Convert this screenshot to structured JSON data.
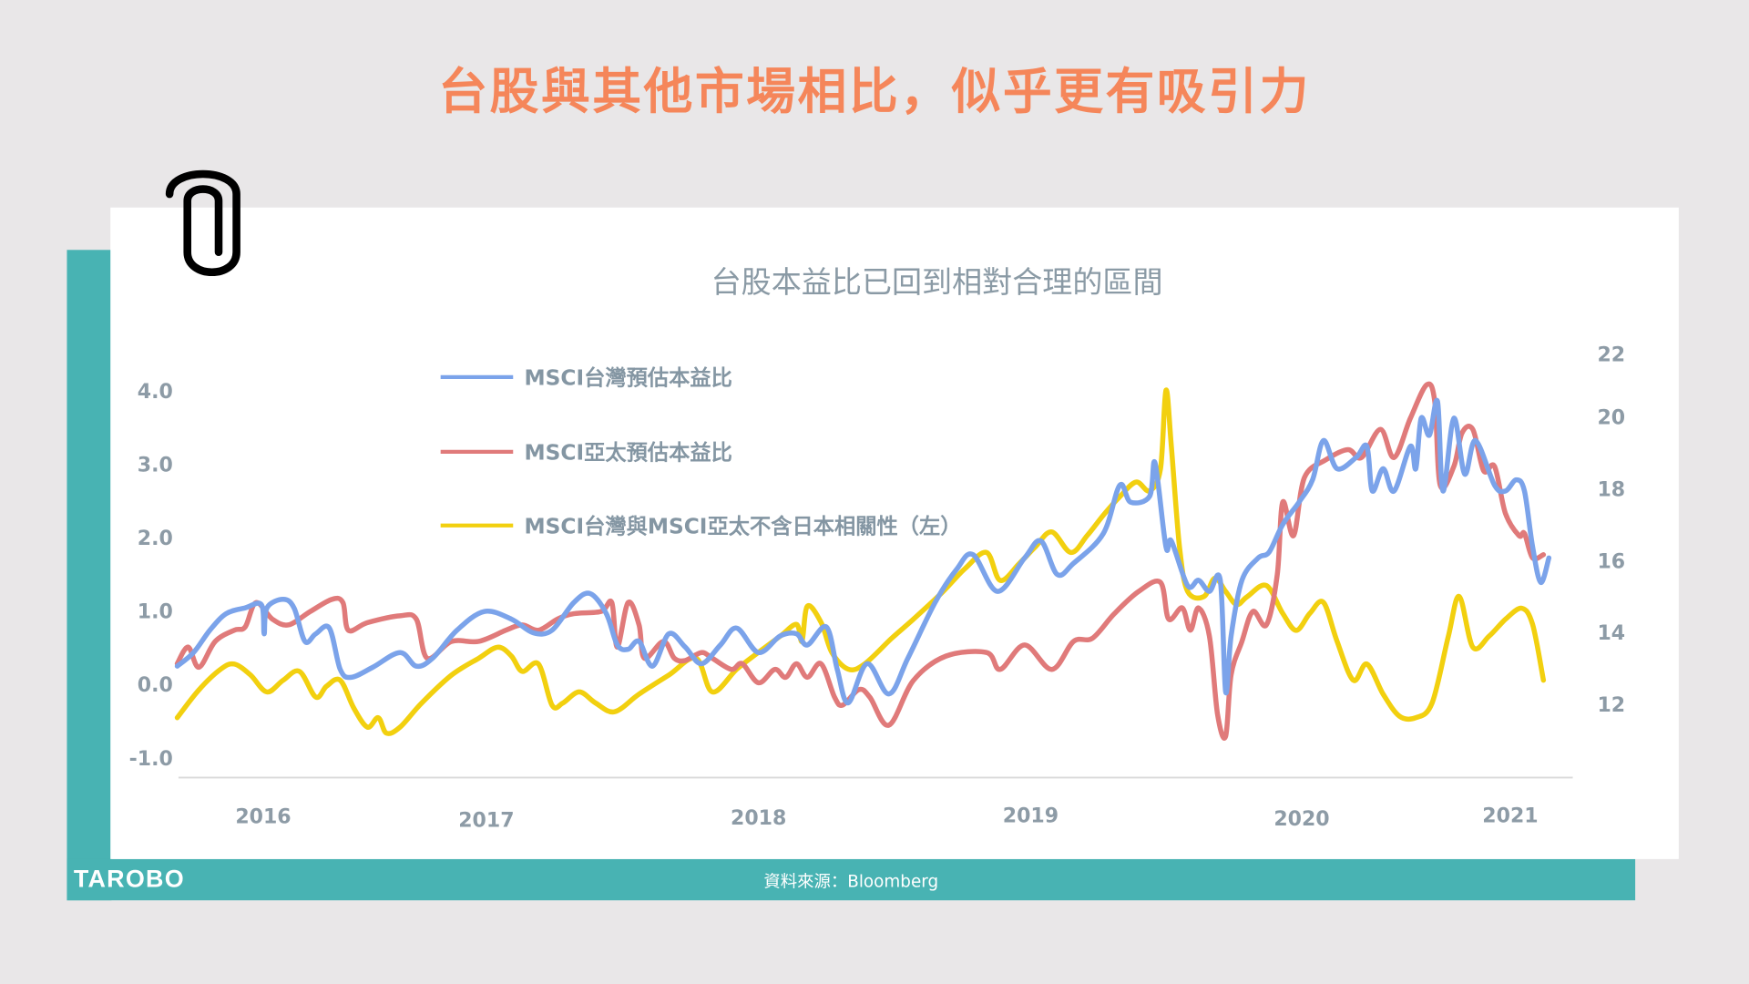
{
  "header": {
    "title": "台股與其他市場相比，似乎更有吸引力"
  },
  "footer": {
    "logo": "TAROBO",
    "source": "資料來源：Bloomberg"
  },
  "colors": {
    "accent": "#f5865a",
    "teal": "#48b3b3",
    "taiwan_pe": "#7ba3ea",
    "asia_pe": "#e07a7a",
    "correlation": "#f2d00f"
  },
  "icons": {
    "paperclip": "paperclip-icon"
  },
  "chart_data": {
    "type": "line",
    "title": "台股本益比已回到相對合理的區間",
    "x_ticks": [
      "2016",
      "2017",
      "2018",
      "2019",
      "2020",
      "2021"
    ],
    "y_left": {
      "ticks": [
        "4.0",
        "3.0",
        "2.0",
        "1.0",
        "0.0",
        "-1.0"
      ],
      "range": [
        -1.0,
        4.0
      ]
    },
    "y_right": {
      "ticks": [
        "22",
        "20",
        "18",
        "16",
        "14",
        "12"
      ],
      "range": [
        12,
        22
      ]
    },
    "grid": false,
    "legend_placement": "top-left",
    "series": [
      {
        "name": "MSCI台灣預估本益比",
        "axis": "right",
        "color": "#7ba3ea",
        "points": [
          [
            2015.86,
            13.05
          ],
          [
            2015.92,
            13.43
          ],
          [
            2015.98,
            14.05
          ],
          [
            2016.04,
            14.51
          ],
          [
            2016.11,
            14.67
          ],
          [
            2016.17,
            14.76
          ],
          [
            2016.18,
            13.95
          ],
          [
            2016.19,
            14.67
          ],
          [
            2016.25,
            14.91
          ],
          [
            2016.29,
            14.67
          ],
          [
            2016.33,
            13.74
          ],
          [
            2016.37,
            13.95
          ],
          [
            2016.42,
            14.11
          ],
          [
            2016.46,
            12.96
          ],
          [
            2016.5,
            12.74
          ],
          [
            2016.58,
            13.02
          ],
          [
            2016.68,
            13.43
          ],
          [
            2016.74,
            13.05
          ],
          [
            2016.8,
            13.27
          ],
          [
            2016.89,
            14.05
          ],
          [
            2016.99,
            14.57
          ],
          [
            2017.09,
            14.36
          ],
          [
            2017.17,
            13.98
          ],
          [
            2017.24,
            14.05
          ],
          [
            2017.32,
            14.82
          ],
          [
            2017.38,
            15.07
          ],
          [
            2017.44,
            14.51
          ],
          [
            2017.48,
            13.64
          ],
          [
            2017.52,
            13.52
          ],
          [
            2017.56,
            13.74
          ],
          [
            2017.61,
            13.05
          ],
          [
            2017.67,
            13.95
          ],
          [
            2017.73,
            13.58
          ],
          [
            2017.79,
            13.12
          ],
          [
            2017.86,
            13.64
          ],
          [
            2017.92,
            14.11
          ],
          [
            2018.0,
            13.43
          ],
          [
            2018.08,
            13.89
          ],
          [
            2018.14,
            13.95
          ],
          [
            2018.18,
            13.64
          ],
          [
            2018.25,
            14.14
          ],
          [
            2018.29,
            12.96
          ],
          [
            2018.33,
            12.03
          ],
          [
            2018.4,
            13.12
          ],
          [
            2018.48,
            12.28
          ],
          [
            2018.55,
            13.27
          ],
          [
            2018.65,
            14.82
          ],
          [
            2018.73,
            15.75
          ],
          [
            2018.79,
            16.15
          ],
          [
            2018.88,
            15.13
          ],
          [
            2018.98,
            16.06
          ],
          [
            2019.04,
            16.53
          ],
          [
            2019.1,
            15.6
          ],
          [
            2019.16,
            15.91
          ],
          [
            2019.27,
            16.74
          ],
          [
            2019.33,
            18.08
          ],
          [
            2019.37,
            17.61
          ],
          [
            2019.44,
            17.77
          ],
          [
            2019.46,
            18.7
          ],
          [
            2019.5,
            16.37
          ],
          [
            2019.52,
            16.53
          ],
          [
            2019.58,
            15.29
          ],
          [
            2019.62,
            15.44
          ],
          [
            2019.66,
            15.13
          ],
          [
            2019.7,
            15.44
          ],
          [
            2019.72,
            12.34
          ],
          [
            2019.74,
            13.89
          ],
          [
            2019.78,
            15.44
          ],
          [
            2019.84,
            16.06
          ],
          [
            2019.88,
            16.22
          ],
          [
            2019.93,
            16.99
          ],
          [
            2019.99,
            17.61
          ],
          [
            2020.04,
            18.23
          ],
          [
            2020.08,
            19.32
          ],
          [
            2020.13,
            18.54
          ],
          [
            2020.2,
            18.85
          ],
          [
            2020.24,
            19.16
          ],
          [
            2020.26,
            17.92
          ],
          [
            2020.3,
            18.54
          ],
          [
            2020.34,
            17.92
          ],
          [
            2020.4,
            19.16
          ],
          [
            2020.42,
            18.54
          ],
          [
            2020.44,
            19.94
          ],
          [
            2020.47,
            19.47
          ],
          [
            2020.5,
            20.4
          ],
          [
            2020.52,
            17.92
          ],
          [
            2020.56,
            19.94
          ],
          [
            2020.6,
            18.39
          ],
          [
            2020.64,
            19.32
          ],
          [
            2020.71,
            18.08
          ],
          [
            2020.75,
            17.92
          ],
          [
            2020.79,
            18.23
          ],
          [
            2020.82,
            17.92
          ],
          [
            2020.85,
            16.37
          ],
          [
            2020.88,
            15.38
          ],
          [
            2020.91,
            16.06
          ]
        ]
      },
      {
        "name": "MSCI亞太預估本益比",
        "axis": "right",
        "color": "#e07a7a",
        "points": [
          [
            2015.86,
            13.12
          ],
          [
            2015.9,
            13.58
          ],
          [
            2015.94,
            13.02
          ],
          [
            2016.0,
            13.74
          ],
          [
            2016.07,
            14.05
          ],
          [
            2016.11,
            14.14
          ],
          [
            2016.15,
            14.82
          ],
          [
            2016.21,
            14.36
          ],
          [
            2016.27,
            14.2
          ],
          [
            2016.35,
            14.57
          ],
          [
            2016.43,
            14.91
          ],
          [
            2016.47,
            14.82
          ],
          [
            2016.49,
            14.05
          ],
          [
            2016.56,
            14.26
          ],
          [
            2016.68,
            14.45
          ],
          [
            2016.74,
            14.36
          ],
          [
            2016.78,
            13.27
          ],
          [
            2016.87,
            13.74
          ],
          [
            2016.97,
            13.74
          ],
          [
            2017.07,
            14.05
          ],
          [
            2017.13,
            14.2
          ],
          [
            2017.19,
            14.05
          ],
          [
            2017.26,
            14.36
          ],
          [
            2017.32,
            14.51
          ],
          [
            2017.42,
            14.57
          ],
          [
            2017.46,
            14.82
          ],
          [
            2017.48,
            13.58
          ],
          [
            2017.52,
            14.82
          ],
          [
            2017.56,
            14.2
          ],
          [
            2017.58,
            13.27
          ],
          [
            2017.65,
            13.74
          ],
          [
            2017.69,
            13.27
          ],
          [
            2017.73,
            13.21
          ],
          [
            2017.79,
            13.43
          ],
          [
            2017.83,
            13.27
          ],
          [
            2017.9,
            12.96
          ],
          [
            2017.94,
            13.12
          ],
          [
            2018.0,
            12.59
          ],
          [
            2018.06,
            12.96
          ],
          [
            2018.1,
            12.74
          ],
          [
            2018.14,
            13.12
          ],
          [
            2018.18,
            12.74
          ],
          [
            2018.23,
            13.12
          ],
          [
            2018.28,
            12.19
          ],
          [
            2018.31,
            11.97
          ],
          [
            2018.37,
            12.4
          ],
          [
            2018.41,
            12.19
          ],
          [
            2018.48,
            11.41
          ],
          [
            2018.57,
            12.65
          ],
          [
            2018.69,
            13.33
          ],
          [
            2018.84,
            13.43
          ],
          [
            2018.89,
            12.96
          ],
          [
            2018.98,
            13.64
          ],
          [
            2019.08,
            12.96
          ],
          [
            2019.16,
            13.74
          ],
          [
            2019.23,
            13.83
          ],
          [
            2019.31,
            14.51
          ],
          [
            2019.4,
            15.13
          ],
          [
            2019.48,
            15.38
          ],
          [
            2019.51,
            14.36
          ],
          [
            2019.56,
            14.67
          ],
          [
            2019.59,
            14.05
          ],
          [
            2019.62,
            14.67
          ],
          [
            2019.66,
            13.89
          ],
          [
            2019.69,
            11.72
          ],
          [
            2019.72,
            11.1
          ],
          [
            2019.74,
            12.81
          ],
          [
            2019.78,
            13.74
          ],
          [
            2019.82,
            14.57
          ],
          [
            2019.87,
            14.2
          ],
          [
            2019.91,
            15.6
          ],
          [
            2019.93,
            17.61
          ],
          [
            2019.97,
            16.68
          ],
          [
            2020.01,
            18.29
          ],
          [
            2020.09,
            18.79
          ],
          [
            2020.17,
            19.07
          ],
          [
            2020.22,
            18.85
          ],
          [
            2020.29,
            19.63
          ],
          [
            2020.34,
            18.85
          ],
          [
            2020.4,
            19.94
          ],
          [
            2020.46,
            20.87
          ],
          [
            2020.49,
            20.4
          ],
          [
            2020.51,
            18.08
          ],
          [
            2020.56,
            18.6
          ],
          [
            2020.59,
            19.53
          ],
          [
            2020.63,
            19.63
          ],
          [
            2020.67,
            18.48
          ],
          [
            2020.71,
            18.6
          ],
          [
            2020.75,
            17.3
          ],
          [
            2020.8,
            16.68
          ],
          [
            2020.82,
            16.74
          ],
          [
            2020.85,
            16.06
          ],
          [
            2020.89,
            16.15
          ]
        ]
      },
      {
        "name": "MSCI台灣與MSCI亞太不含日本相關性（左）",
        "axis": "left",
        "color": "#f2d00f",
        "points": [
          [
            2015.86,
            -0.46
          ],
          [
            2015.94,
            -0.08
          ],
          [
            2016.02,
            0.2
          ],
          [
            2016.07,
            0.27
          ],
          [
            2016.13,
            0.12
          ],
          [
            2016.19,
            -0.11
          ],
          [
            2016.25,
            0.05
          ],
          [
            2016.31,
            0.17
          ],
          [
            2016.37,
            -0.18
          ],
          [
            2016.41,
            -0.03
          ],
          [
            2016.46,
            0.05
          ],
          [
            2016.51,
            -0.33
          ],
          [
            2016.56,
            -0.59
          ],
          [
            2016.6,
            -0.46
          ],
          [
            2016.63,
            -0.67
          ],
          [
            2016.68,
            -0.59
          ],
          [
            2016.76,
            -0.26
          ],
          [
            2016.87,
            0.12
          ],
          [
            2016.97,
            0.35
          ],
          [
            2017.04,
            0.5
          ],
          [
            2017.09,
            0.38
          ],
          [
            2017.13,
            0.17
          ],
          [
            2017.19,
            0.27
          ],
          [
            2017.24,
            -0.29
          ],
          [
            2017.28,
            -0.26
          ],
          [
            2017.34,
            -0.11
          ],
          [
            2017.4,
            -0.26
          ],
          [
            2017.47,
            -0.38
          ],
          [
            2017.56,
            -0.14
          ],
          [
            2017.67,
            0.12
          ],
          [
            2017.77,
            0.35
          ],
          [
            2017.83,
            -0.11
          ],
          [
            2017.92,
            0.2
          ],
          [
            2018.0,
            0.43
          ],
          [
            2018.08,
            0.65
          ],
          [
            2018.14,
            0.81
          ],
          [
            2018.16,
            0.58
          ],
          [
            2018.18,
            1.06
          ],
          [
            2018.23,
            0.84
          ],
          [
            2018.27,
            0.43
          ],
          [
            2018.33,
            0.2
          ],
          [
            2018.39,
            0.27
          ],
          [
            2018.49,
            0.62
          ],
          [
            2018.57,
            0.88
          ],
          [
            2018.68,
            1.26
          ],
          [
            2018.76,
            1.57
          ],
          [
            2018.84,
            1.79
          ],
          [
            2018.89,
            1.41
          ],
          [
            2018.96,
            1.64
          ],
          [
            2019.02,
            1.87
          ],
          [
            2019.08,
            2.07
          ],
          [
            2019.15,
            1.79
          ],
          [
            2019.21,
            2.02
          ],
          [
            2019.27,
            2.3
          ],
          [
            2019.33,
            2.55
          ],
          [
            2019.39,
            2.75
          ],
          [
            2019.44,
            2.63
          ],
          [
            2019.48,
            2.93
          ],
          [
            2019.5,
            4.0
          ],
          [
            2019.52,
            3.24
          ],
          [
            2019.55,
            1.87
          ],
          [
            2019.58,
            1.26
          ],
          [
            2019.64,
            1.19
          ],
          [
            2019.68,
            1.44
          ],
          [
            2019.72,
            1.26
          ],
          [
            2019.76,
            1.08
          ],
          [
            2019.8,
            1.19
          ],
          [
            2019.87,
            1.34
          ],
          [
            2019.93,
            0.96
          ],
          [
            2019.98,
            0.73
          ],
          [
            2020.03,
            0.96
          ],
          [
            2020.08,
            1.11
          ],
          [
            2020.13,
            0.58
          ],
          [
            2020.19,
            0.05
          ],
          [
            2020.24,
            0.27
          ],
          [
            2020.3,
            -0.14
          ],
          [
            2020.36,
            -0.44
          ],
          [
            2020.42,
            -0.46
          ],
          [
            2020.48,
            -0.26
          ],
          [
            2020.54,
            0.65
          ],
          [
            2020.58,
            1.19
          ],
          [
            2020.63,
            0.5
          ],
          [
            2020.69,
            0.65
          ],
          [
            2020.75,
            0.88
          ],
          [
            2020.81,
            1.03
          ],
          [
            2020.85,
            0.81
          ],
          [
            2020.89,
            0.05
          ]
        ]
      }
    ]
  }
}
